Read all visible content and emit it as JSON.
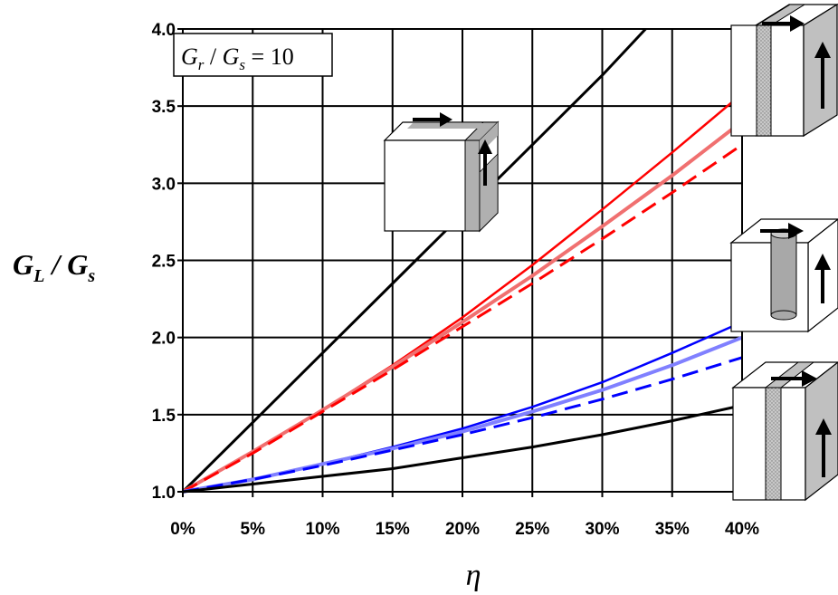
{
  "chart_data": {
    "type": "line",
    "xlabel": "η",
    "ylabel": "G_L / G_s",
    "ylabel_parts": {
      "main_a": "G",
      "sub_a": "L",
      "slash": " / ",
      "main_b": "G",
      "sub_b": "s"
    },
    "annotation": "G_r / G_s = 10",
    "annotation_parts": {
      "main_a": "G",
      "sub_a": "r",
      "slash": " / ",
      "main_b": "G",
      "sub_b": "s",
      "eq": " = ",
      "value": "10"
    },
    "x_unit": "percent",
    "xlim": [
      0,
      40
    ],
    "ylim": [
      1.0,
      4.0
    ],
    "grid": true,
    "legend": "none",
    "x_ticks": [
      0,
      5,
      10,
      15,
      20,
      25,
      30,
      35,
      40
    ],
    "x_tick_labels": [
      "0%",
      "5%",
      "10%",
      "15%",
      "20%",
      "25%",
      "30%",
      "35%",
      "40%"
    ],
    "y_ticks": [
      1.0,
      1.5,
      2.0,
      2.5,
      3.0,
      3.5,
      4.0
    ],
    "y_tick_labels": [
      "1.0",
      "1.5",
      "2.0",
      "2.5",
      "3.0",
      "3.5",
      "4.0"
    ],
    "series": [
      {
        "color": "#000000",
        "style": "solid",
        "width": 3,
        "x": [
          0,
          5,
          10,
          15,
          20,
          25,
          30,
          33.1
        ],
        "y": [
          1.0,
          1.45,
          1.9,
          2.35,
          2.8,
          3.25,
          3.7,
          4.0
        ]
      },
      {
        "color": "#ff0000",
        "style": "solid",
        "width": 2.5,
        "x": [
          0,
          5,
          10,
          15,
          20,
          25,
          30,
          35,
          40
        ],
        "y": [
          1.0,
          1.26,
          1.53,
          1.82,
          2.13,
          2.47,
          2.83,
          3.2,
          3.58
        ]
      },
      {
        "color": "#f07070",
        "style": "solid",
        "width": 4,
        "x": [
          0,
          5,
          10,
          15,
          20,
          25,
          30,
          35,
          40
        ],
        "y": [
          1.0,
          1.26,
          1.53,
          1.81,
          2.1,
          2.4,
          2.72,
          3.05,
          3.4
        ]
      },
      {
        "color": "#ff0000",
        "style": "dashed",
        "width": 3,
        "x": [
          0,
          5,
          10,
          15,
          20,
          25,
          30,
          35,
          40
        ],
        "y": [
          1.0,
          1.25,
          1.52,
          1.79,
          2.07,
          2.35,
          2.64,
          2.94,
          3.25
        ]
      },
      {
        "color": "#0000ff",
        "style": "solid",
        "width": 2.5,
        "x": [
          0,
          5,
          10,
          15,
          20,
          25,
          30,
          35,
          40
        ],
        "y": [
          1.0,
          1.08,
          1.18,
          1.29,
          1.41,
          1.55,
          1.71,
          1.9,
          2.1
        ]
      },
      {
        "color": "#8080ff",
        "style": "solid",
        "width": 4,
        "x": [
          0,
          5,
          10,
          15,
          20,
          25,
          30,
          35,
          40
        ],
        "y": [
          1.0,
          1.08,
          1.18,
          1.28,
          1.39,
          1.52,
          1.66,
          1.82,
          2.0
        ]
      },
      {
        "color": "#0000ff",
        "style": "dashed",
        "width": 3,
        "x": [
          0,
          5,
          10,
          15,
          20,
          25,
          30,
          35,
          40
        ],
        "y": [
          1.0,
          1.08,
          1.17,
          1.27,
          1.37,
          1.48,
          1.6,
          1.73,
          1.87
        ]
      },
      {
        "color": "#000000",
        "style": "solid",
        "width": 3,
        "x": [
          0,
          5,
          10,
          15,
          20,
          25,
          30,
          35,
          40
        ],
        "y": [
          1.0,
          1.05,
          1.1,
          1.15,
          1.22,
          1.29,
          1.37,
          1.46,
          1.56
        ]
      }
    ]
  },
  "insets": [
    {
      "name": "inset-cube-laminate-corner",
      "depicts": "cube with stiff layer at corner edge, shear arrows"
    },
    {
      "name": "inset-cube-vertical-laminate",
      "depicts": "cube with vertical stiff layer, shear arrows"
    },
    {
      "name": "inset-cube-cylinder",
      "depicts": "transparent cube with embedded cylinder, shear arrows"
    },
    {
      "name": "inset-cube-layer-lower",
      "depicts": "cube with vertical stiff layer, shear arrows"
    }
  ]
}
